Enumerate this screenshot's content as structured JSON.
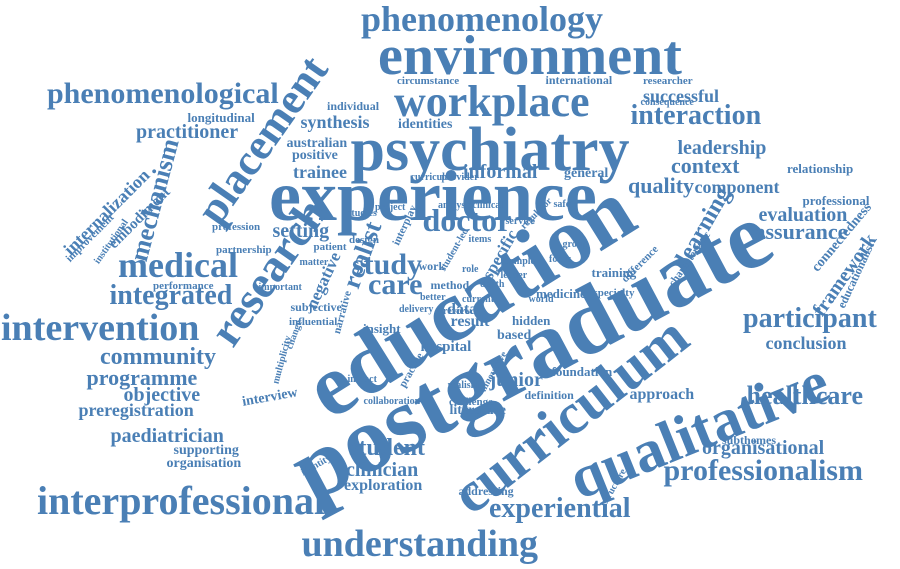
{
  "colors": {
    "word": "#4a7fb5",
    "background": "#ffffff"
  },
  "words": [
    "phenomenology",
    "environment",
    "phenomenological",
    "workplace",
    "placement",
    "interaction",
    "psychiatry",
    "practitioner",
    "leadership",
    "experience",
    "context",
    "quality",
    "component",
    "mechanism",
    "medical",
    "research",
    "study",
    "doctor",
    "care",
    "realist",
    "integrated",
    "intervention",
    "participant",
    "education",
    "postgraduate",
    "curriculum",
    "qualitative",
    "community",
    "programme",
    "objective",
    "preregistration",
    "paediatrician",
    "supporting",
    "organisation",
    "student",
    "clinician",
    "exploration",
    "interprofessional",
    "understanding",
    "experiential",
    "professionalism",
    "organisational",
    "healthcare",
    "conclusion",
    "approach",
    "junior",
    "framework",
    "assurance",
    "evaluation",
    "learning",
    "longitudinal",
    "synthesis",
    "identities",
    "successful",
    "internalization",
    "embodiment",
    "trainee",
    "informal",
    "general",
    "australian",
    "positive",
    "relationship",
    "professional",
    "result",
    "based",
    "hospital",
    "setting",
    "negative",
    "data",
    "interview",
    "literature",
    "foundation",
    "addressing",
    "individual",
    "circumstance",
    "international",
    "researcher",
    "consequence",
    "improvement",
    "institutional",
    "profession",
    "partnership",
    "performance",
    "subjective",
    "influential",
    "multiplicity",
    "insight",
    "narrative",
    "patient",
    "matter",
    "method",
    "work",
    "specific",
    "hidden",
    "medicine",
    "training",
    "specialty",
    "difference",
    "characteristic",
    "connectedness",
    "educationalist",
    "subthemes",
    "structure",
    "definition",
    "challenge",
    "collaboration",
    "identity",
    "innovative",
    "practice",
    "impact",
    "realism",
    "design",
    "interplay",
    "studies",
    "project",
    "analysis",
    "clinical",
    "service",
    "safety",
    "regulator",
    "provider",
    "curricula",
    "delivery",
    "review",
    "important",
    "change",
    "depth",
    "current",
    "world",
    "sample",
    "better",
    "role",
    "leader",
    "student-led",
    "items",
    "focus",
    "group"
  ]
}
